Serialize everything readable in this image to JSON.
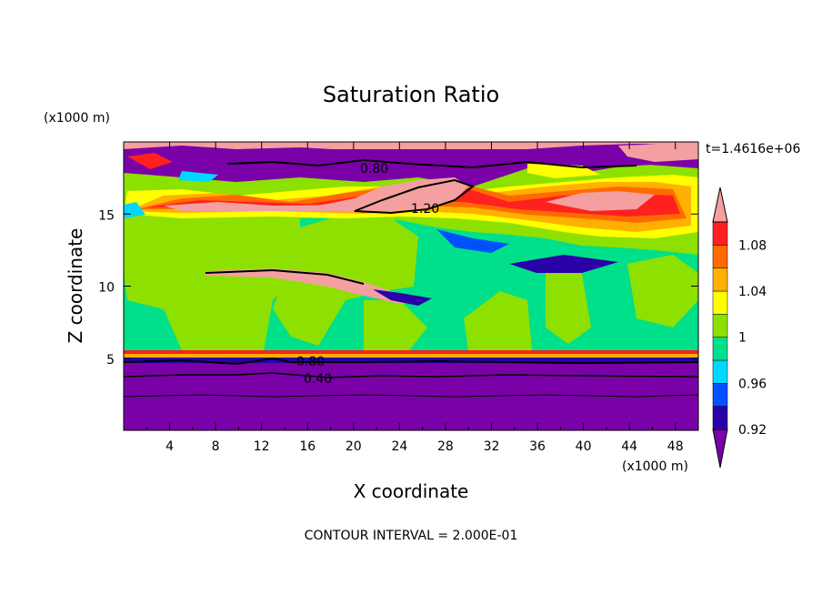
{
  "chart_data": {
    "type": "heatmap",
    "title": "Saturation Ratio",
    "xlabel": "X coordinate",
    "ylabel": "Z coordinate",
    "x_unit": "(x1000 m)",
    "y_unit": "(x1000 m)",
    "time_label": "t=1.4616e+06",
    "footer": "CONTOUR INTERVAL = 2.000E-01",
    "xlim": [
      0,
      50
    ],
    "ylim": [
      0,
      20
    ],
    "x_ticks": [
      "4",
      "8",
      "12",
      "16",
      "20",
      "24",
      "28",
      "32",
      "36",
      "40",
      "44",
      "48"
    ],
    "y_ticks": [
      "5",
      "10",
      "15"
    ],
    "colorbar": {
      "labels": [
        "1.08",
        "1.04",
        "1",
        "0.96",
        "0.92"
      ],
      "colors": [
        "#7a00a8",
        "#2a00a8",
        "#0050ff",
        "#00d8ff",
        "#00e08a",
        "#8ee000",
        "#ffff00",
        "#ffb000",
        "#ff6a00",
        "#ff2020",
        "#f4a0a0"
      ]
    },
    "contour_labels": [
      "0.80",
      "1.20",
      "0.80",
      "0.40"
    ],
    "layers": [
      {
        "z_from": 0,
        "z_to": 4.8,
        "value": "< 0.92"
      },
      {
        "z_from": 4.8,
        "z_to": 14.5,
        "value": "0.98 - 1.00"
      },
      {
        "z_from": 14.5,
        "z_to": 18,
        "value": "1.02 - 1.20+"
      },
      {
        "z_from": 18,
        "z_to": 20,
        "value": "0.80 - 1.10"
      }
    ]
  }
}
